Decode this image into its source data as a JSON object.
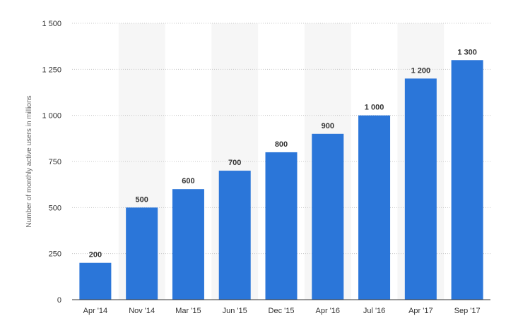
{
  "chart_data": {
    "type": "bar",
    "categories": [
      "Apr '14",
      "Nov '14",
      "Mar '15",
      "Jun '15",
      "Dec '15",
      "Apr '16",
      "Jul '16",
      "Apr '17",
      "Sep '17"
    ],
    "values": [
      200,
      500,
      600,
      700,
      800,
      900,
      1000,
      1200,
      1300
    ],
    "value_labels": [
      "200",
      "500",
      "600",
      "700",
      "800",
      "900",
      "1 000",
      "1 200",
      "1 300"
    ],
    "ylabel": "Number of monthly active users in millions",
    "ylim": [
      0,
      1500
    ],
    "yticks": [
      0,
      250,
      500,
      750,
      1000,
      1250,
      1500
    ],
    "ytick_labels": [
      "0",
      "250",
      "500",
      "750",
      "1 000",
      "1 250",
      "1 500"
    ],
    "grid": true,
    "legend": false,
    "colors": {
      "bar": "#2b76d9",
      "band": "#f6f6f6",
      "grid": "#c8c8c8",
      "axis": "#333333"
    }
  }
}
